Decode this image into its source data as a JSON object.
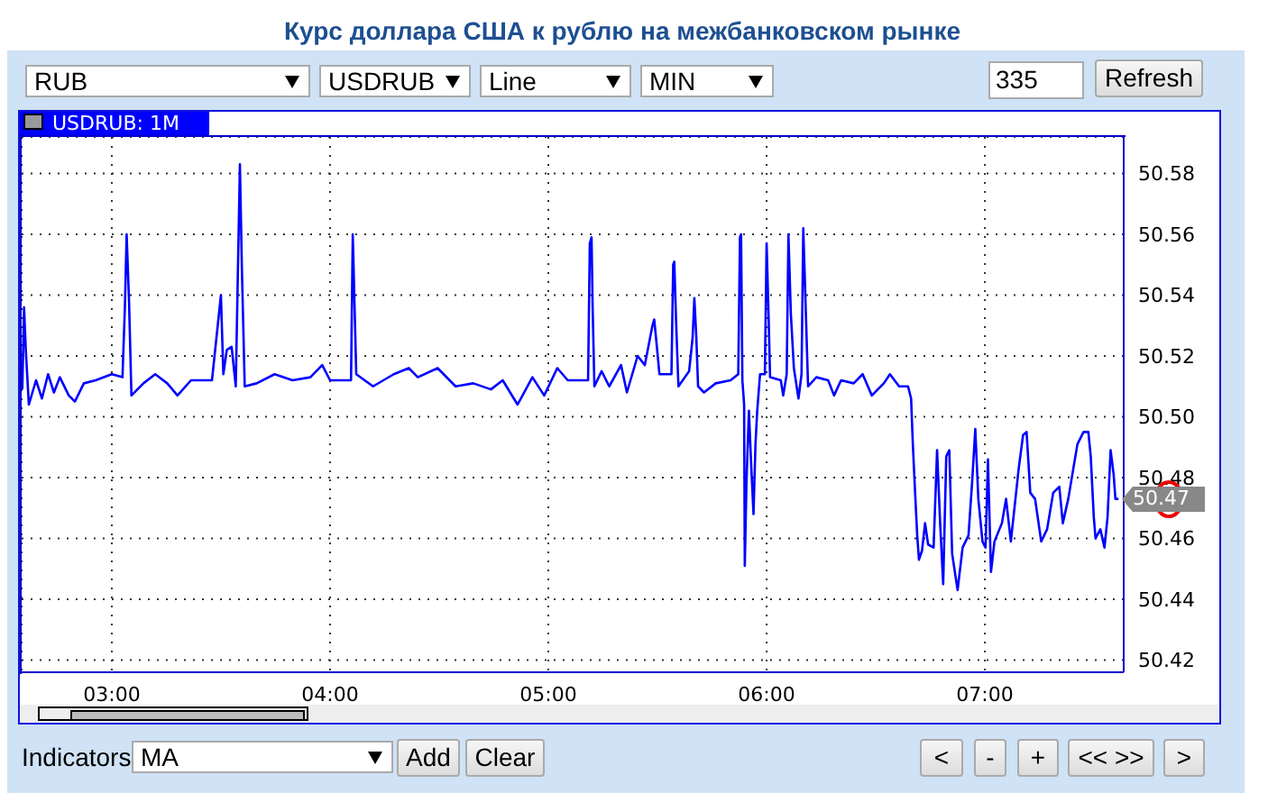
{
  "chart_data": {
    "type": "line",
    "title": "Курс доллара США к рублю на межбанковском рынке",
    "subtitle": "USDRUB: 1M",
    "x": [
      2.59,
      2.598,
      2.606,
      2.62,
      2.653,
      2.68,
      2.708,
      2.735,
      2.762,
      2.803,
      2.831,
      2.872,
      2.926,
      3.0,
      3.049,
      3.06,
      3.068,
      3.079,
      3.09,
      3.145,
      3.199,
      3.254,
      3.301,
      3.363,
      3.459,
      3.5,
      3.511,
      3.527,
      3.549,
      3.568,
      3.577,
      3.587,
      3.596,
      3.609,
      3.664,
      3.746,
      3.828,
      3.91,
      3.964,
      4.0,
      4.096,
      4.104,
      4.112,
      4.12,
      4.197,
      4.292,
      4.361,
      4.402,
      4.493,
      4.575,
      4.656,
      4.737,
      4.791,
      4.859,
      4.927,
      4.981,
      5.041,
      5.089,
      5.182,
      5.19,
      5.198,
      5.203,
      5.211,
      5.244,
      5.279,
      5.333,
      5.36,
      5.409,
      5.442,
      5.477,
      5.485,
      5.496,
      5.509,
      5.564,
      5.572,
      5.577,
      5.585,
      5.596,
      5.645,
      5.661,
      5.669,
      5.678,
      5.686,
      5.713,
      5.767,
      5.835,
      5.87,
      5.878,
      5.883,
      5.889,
      5.897,
      5.9,
      5.908,
      5.919,
      5.93,
      5.94,
      5.949,
      5.957,
      5.97,
      5.992,
      6.0,
      6.008,
      6.016,
      6.065,
      6.076,
      6.092,
      6.1,
      6.111,
      6.125,
      6.146,
      6.16,
      6.168,
      6.179,
      6.19,
      6.228,
      6.282,
      6.309,
      6.341,
      6.399,
      6.44,
      6.482,
      6.537,
      6.565,
      6.607,
      6.648,
      6.662,
      6.67,
      6.679,
      6.69,
      6.698,
      6.712,
      6.726,
      6.74,
      6.765,
      6.781,
      6.795,
      6.809,
      6.823,
      6.837,
      6.85,
      6.875,
      6.898,
      6.925,
      6.942,
      6.956,
      6.97,
      6.989,
      7.003,
      7.014,
      7.028,
      7.044,
      7.078,
      7.097,
      7.119,
      7.155,
      7.175,
      7.191,
      7.208,
      7.23,
      7.258,
      7.285,
      7.313,
      7.341,
      7.357,
      7.382,
      7.41,
      7.424,
      7.452,
      7.474,
      7.485,
      7.499,
      7.507,
      7.529,
      7.548,
      7.562,
      7.576,
      7.59,
      7.598,
      7.612
    ],
    "series": [
      {
        "color": "#0000ff",
        "values": [
          50.509,
          50.536,
          50.522,
          50.504,
          50.512,
          50.506,
          50.514,
          50.508,
          50.513,
          50.507,
          50.505,
          50.511,
          50.512,
          50.514,
          50.513,
          50.536,
          50.56,
          50.538,
          50.507,
          50.511,
          50.514,
          50.511,
          50.507,
          50.512,
          50.512,
          50.54,
          50.514,
          50.522,
          50.523,
          50.51,
          50.545,
          50.583,
          50.549,
          50.51,
          50.511,
          50.514,
          50.512,
          50.513,
          50.517,
          50.512,
          50.512,
          50.56,
          50.537,
          50.514,
          50.51,
          50.514,
          50.516,
          50.513,
          50.516,
          50.51,
          50.511,
          50.509,
          50.512,
          50.504,
          50.513,
          50.507,
          50.516,
          50.512,
          50.512,
          50.557,
          50.559,
          50.536,
          50.51,
          50.515,
          50.51,
          50.517,
          50.508,
          50.52,
          50.517,
          50.53,
          50.532,
          50.524,
          50.514,
          50.514,
          50.55,
          50.551,
          50.532,
          50.51,
          50.515,
          50.526,
          50.539,
          50.526,
          50.51,
          50.508,
          50.511,
          50.512,
          50.514,
          50.559,
          50.56,
          50.512,
          50.504,
          50.451,
          50.479,
          50.502,
          50.483,
          50.468,
          50.491,
          50.502,
          50.514,
          50.514,
          50.557,
          50.536,
          50.513,
          50.512,
          50.507,
          50.514,
          50.56,
          50.534,
          50.516,
          50.506,
          50.514,
          50.562,
          50.536,
          50.51,
          50.513,
          50.512,
          50.507,
          50.512,
          50.511,
          50.514,
          50.507,
          50.511,
          50.514,
          50.51,
          50.51,
          50.506,
          50.491,
          50.477,
          50.461,
          50.453,
          50.456,
          50.465,
          50.458,
          50.457,
          50.489,
          50.465,
          50.445,
          50.487,
          50.489,
          50.455,
          50.443,
          50.457,
          50.461,
          50.479,
          50.496,
          50.473,
          50.459,
          50.457,
          50.486,
          50.449,
          50.459,
          50.465,
          50.473,
          50.459,
          50.483,
          50.494,
          50.495,
          50.475,
          50.473,
          50.459,
          50.463,
          50.475,
          50.477,
          50.465,
          50.473,
          50.485,
          50.491,
          50.495,
          50.495,
          50.487,
          50.467,
          50.46,
          50.463,
          50.457,
          50.467,
          50.489,
          50.481,
          50.473,
          50.473
        ]
      }
    ],
    "xlim": [
      2.587,
      7.636
    ],
    "ylim": [
      50.416,
      50.592
    ],
    "xticks": [
      {
        "value": 3,
        "label": "03:00"
      },
      {
        "value": 4,
        "label": "04:00"
      },
      {
        "value": 5,
        "label": "05:00"
      },
      {
        "value": 6,
        "label": "06:00"
      },
      {
        "value": 7,
        "label": "07:00"
      }
    ],
    "yticks": [
      50.42,
      50.44,
      50.46,
      50.48,
      {
        "value": 50.5,
        "label": "50.50"
      },
      50.52,
      50.54,
      50.56,
      50.58
    ],
    "grid": true,
    "marker": "none",
    "annotations": [
      "RUB",
      "USDRUB",
      "Line",
      "MIN",
      "335",
      "Refresh",
      "Indicators",
      "MA",
      "Add",
      "Clear",
      "<",
      "-",
      "+",
      "<< >>",
      ">",
      "50.47"
    ]
  }
}
